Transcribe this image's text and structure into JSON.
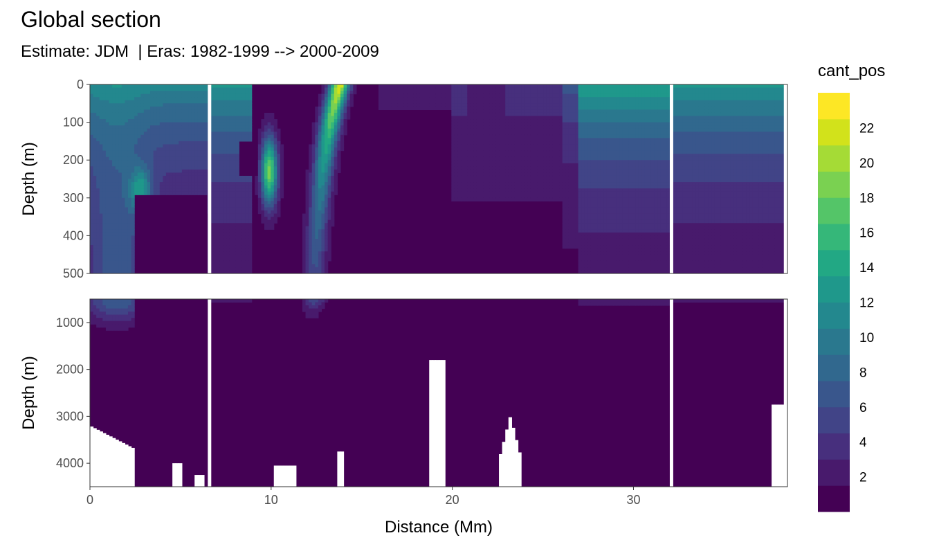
{
  "title": "Global section",
  "subtitle": "Estimate: JDM  | Eras: 1982-1999 --> 2000-2009",
  "chart_data": {
    "type": "heatmap",
    "title": "Global section",
    "subtitle": "Estimate: JDM  | Eras: 1982-1999 --> 2000-2009",
    "xlabel": "Distance (Mm)",
    "ylabel": "Depth (m)",
    "xlim": [
      0,
      38.5
    ],
    "x_ticks": [
      "0",
      "10",
      "20",
      "30"
    ],
    "panels": [
      {
        "name": "upper",
        "ylim": [
          0,
          500
        ],
        "y_ticks": [
          "0",
          "100",
          "200",
          "300",
          "400",
          "500"
        ]
      },
      {
        "name": "lower",
        "ylim": [
          500,
          4500
        ],
        "y_ticks": [
          "1000",
          "2000",
          "3000",
          "4000"
        ]
      }
    ],
    "legend": {
      "title": "cant_pos",
      "position": "right",
      "breaks": [
        "2",
        "4",
        "6",
        "8",
        "10",
        "12",
        "14",
        "16",
        "18",
        "20",
        "22"
      ],
      "colors": [
        "#440154",
        "#481a6c",
        "#472f7d",
        "#414487",
        "#39568c",
        "#31688e",
        "#2a788e",
        "#23888e",
        "#1f988b",
        "#22a884",
        "#35b779",
        "#54c568",
        "#7ad151",
        "#a5db36",
        "#d2e21b",
        "#fde725"
      ]
    },
    "gaps_distance_mm": [
      6.6,
      32.1
    ],
    "grid": true,
    "fields_note": "Filled contour field of cant_pos vs distance and depth"
  }
}
